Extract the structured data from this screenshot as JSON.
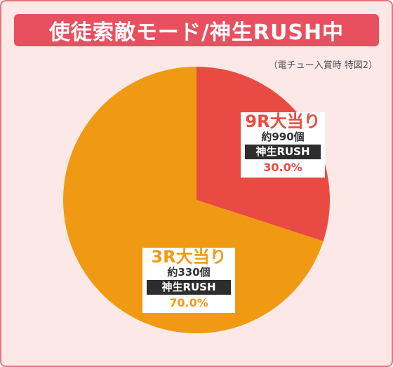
{
  "title": "使徒索敵モード/神生RUSH中",
  "note": "（電チュー入賞時 特図2）",
  "colors": {
    "frame_bg": "#fde8e8",
    "frame_border": "#e8747c",
    "title_bg": "#e85060",
    "slice_9r": "#e94b42",
    "slice_3r": "#f09a14",
    "mode_bg": "#2d2d2d"
  },
  "chart_data": {
    "type": "pie",
    "slices": [
      {
        "label": "9R大当り",
        "count_label": "約990個",
        "mode": "神生RUSH",
        "value": 30.0,
        "percent_label": "30.0%",
        "color": "#e94b42"
      },
      {
        "label": "3R大当り",
        "count_label": "約330個",
        "mode": "神生RUSH",
        "value": 70.0,
        "percent_label": "70.0%",
        "color": "#f09a14"
      }
    ],
    "start_angle_deg": 0,
    "direction": "clockwise"
  }
}
